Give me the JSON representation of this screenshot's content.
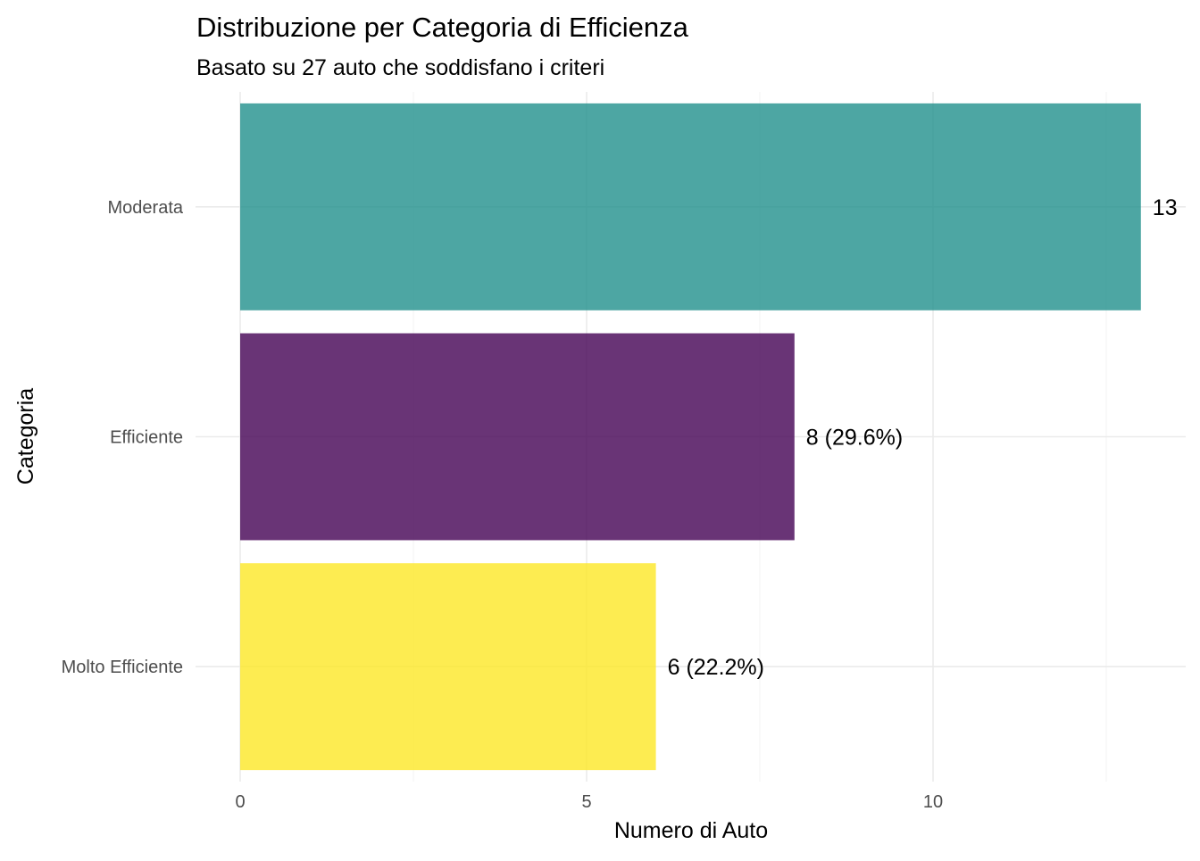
{
  "chart_data": {
    "type": "bar",
    "orientation": "horizontal",
    "title": "Distribuzione per Categoria di Efficienza",
    "subtitle": "Basato su 27 auto che soddisfano i criteri",
    "xlabel": "Numero di Auto",
    "ylabel": "Categoria",
    "categories": [
      "Moderata",
      "Efficiente",
      "Molto Efficiente"
    ],
    "values": [
      13,
      8,
      6
    ],
    "data_labels": [
      "13",
      "8 (29.6%)",
      "6 (22.2%)"
    ],
    "colors": [
      "#21908C",
      "#440154",
      "#FDE725"
    ],
    "bar_opacity": 0.8,
    "x_ticks": [
      0,
      5,
      10
    ],
    "x_tick_labels": [
      "0",
      "5",
      "10"
    ],
    "xlim": [
      0,
      13.65
    ],
    "grid": true,
    "legend": "none"
  }
}
